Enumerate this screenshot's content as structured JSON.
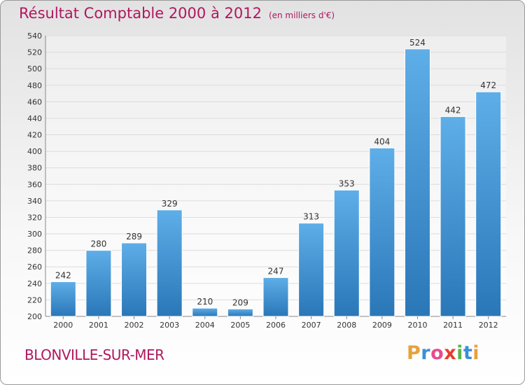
{
  "header": {
    "title": "Résultat Comptable 2000 à 2012",
    "subtitle": "(en milliers d'€)"
  },
  "footer": {
    "city": "BLONVILLE-SUR-MER",
    "logo_letters": [
      "P",
      "r",
      "o",
      "x",
      "i",
      "t",
      "i"
    ],
    "logo_colors": [
      "#e8a13a",
      "#3a8fd8",
      "#e74c8c",
      "#e63d2e",
      "#5bb54a",
      "#3a8fd8",
      "#e8a13a"
    ]
  },
  "colors": {
    "bar_light": "#5eaee8",
    "bar_dark": "#2a77b8",
    "grid": "#dcdcdc",
    "title": "#b0175f"
  },
  "chart_data": {
    "type": "bar",
    "title": "Résultat Comptable 2000 à 2012",
    "subtitle": "(en milliers d'€)",
    "categories": [
      "2000",
      "2001",
      "2002",
      "2003",
      "2004",
      "2005",
      "2006",
      "2007",
      "2008",
      "2009",
      "2010",
      "2011",
      "2012"
    ],
    "values": [
      242,
      280,
      289,
      329,
      210,
      209,
      247,
      313,
      353,
      404,
      524,
      442,
      472
    ],
    "ylim": [
      200,
      540
    ],
    "ytick_step": 20,
    "yticks": [
      "200",
      "220",
      "240",
      "260",
      "280",
      "300",
      "320",
      "340",
      "360",
      "380",
      "400",
      "420",
      "440",
      "460",
      "480",
      "500",
      "520",
      "540"
    ],
    "grid": true,
    "xlabel": "",
    "ylabel": ""
  }
}
